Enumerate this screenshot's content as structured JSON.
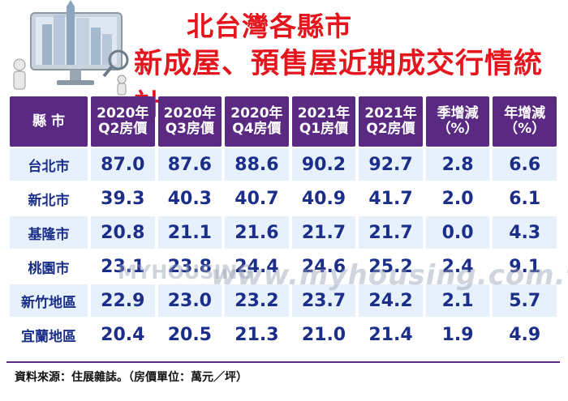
{
  "title": {
    "line1": "北台灣各縣市",
    "line2": "新成屋、預售屋近期成交行情統計"
  },
  "table": {
    "headers": [
      {
        "l1": "縣 市",
        "l2": ""
      },
      {
        "l1": "2020年",
        "l2": "Q2房價"
      },
      {
        "l1": "2020年",
        "l2": "Q3房價"
      },
      {
        "l1": "2020年",
        "l2": "Q4房價"
      },
      {
        "l1": "2021年",
        "l2": "Q1房價"
      },
      {
        "l1": "2021年",
        "l2": "Q2房價"
      },
      {
        "l1": "季增減",
        "l2": "（%）"
      },
      {
        "l1": "年增減",
        "l2": "（%）"
      }
    ],
    "rows": [
      [
        "台北市",
        "87.0",
        "87.6",
        "88.6",
        "90.2",
        "92.7",
        "2.8",
        "6.6"
      ],
      [
        "新北市",
        "39.3",
        "40.3",
        "40.7",
        "40.9",
        "41.7",
        "2.0",
        "6.1"
      ],
      [
        "基隆市",
        "20.8",
        "21.1",
        "21.6",
        "21.7",
        "21.7",
        "0.0",
        "4.3"
      ],
      [
        "桃園市",
        "23.1",
        "23.8",
        "24.4",
        "24.6",
        "25.2",
        "2.4",
        "9.1"
      ],
      [
        "新竹地區",
        "22.9",
        "23.0",
        "23.2",
        "23.7",
        "24.2",
        "2.1",
        "5.7"
      ],
      [
        "宜蘭地區",
        "20.4",
        "20.5",
        "21.3",
        "21.0",
        "21.4",
        "1.9",
        "4.9"
      ]
    ]
  },
  "watermark": {
    "logo": "MYHOUSING",
    "url": "www.myhousing.com.tw"
  },
  "source": "資料來源：住展雜誌。（房價單位：萬元／坪）",
  "colors": {
    "title": "#e4151c",
    "header_bg": "#5a2a83",
    "cell_text": "#1a2e8a",
    "row_stripe": "#e7f1fb"
  }
}
